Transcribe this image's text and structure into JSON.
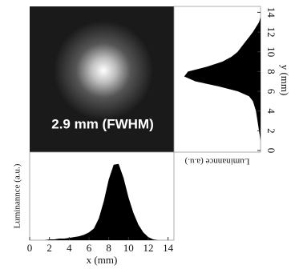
{
  "chart_data": [
    {
      "type": "image",
      "annotation": "2.9 mm (FWHM)"
    },
    {
      "type": "area",
      "color": "#000000",
      "x": [
        0,
        0.5,
        1,
        1.5,
        2,
        2.5,
        3,
        3.5,
        4,
        4.5,
        5,
        5.5,
        6,
        6.5,
        7,
        7.5,
        8,
        8.5,
        9,
        9.5,
        10,
        10.5,
        11,
        11.5,
        12,
        12.5,
        13,
        13.5,
        14
      ],
      "values": [
        0,
        0,
        0,
        0,
        0.01,
        0.01,
        0.02,
        0.02,
        0.03,
        0.04,
        0.05,
        0.07,
        0.1,
        0.15,
        0.28,
        0.5,
        0.78,
        0.97,
        0.98,
        0.8,
        0.55,
        0.35,
        0.2,
        0.1,
        0.04,
        0.01,
        0,
        0,
        0
      ],
      "xlim": [
        0,
        14.6
      ],
      "xticks": [
        0,
        2,
        4,
        6,
        8,
        10,
        12,
        14
      ],
      "ylim": [
        0,
        1.05
      ],
      "xlabel": "x (mm)",
      "ylabel": "Luminannce (a.u.)"
    },
    {
      "type": "area-vertical",
      "color": "#000000",
      "y": [
        0,
        0.5,
        1,
        1.5,
        2,
        2.5,
        3,
        3.5,
        4,
        4.5,
        5,
        5.5,
        6,
        6.5,
        7,
        7.5,
        8,
        8.5,
        9,
        9.5,
        10,
        10.5,
        11,
        11.5,
        12,
        12.5,
        13,
        13.5,
        14
      ],
      "values": [
        0,
        0,
        0,
        0.01,
        0.02,
        0.03,
        0.04,
        0.05,
        0.06,
        0.08,
        0.1,
        0.15,
        0.3,
        0.55,
        0.85,
        1.0,
        0.95,
        0.7,
        0.5,
        0.38,
        0.3,
        0.25,
        0.2,
        0.15,
        0.1,
        0.06,
        0.02,
        0,
        0
      ],
      "ylim": [
        0,
        14.6
      ],
      "yticks": [
        0,
        2,
        4,
        6,
        8,
        10,
        12,
        14
      ],
      "xlim": [
        0,
        1.05
      ],
      "ylabel": "y (mm)",
      "xlabel": "Luminannce (a.u.)"
    }
  ]
}
